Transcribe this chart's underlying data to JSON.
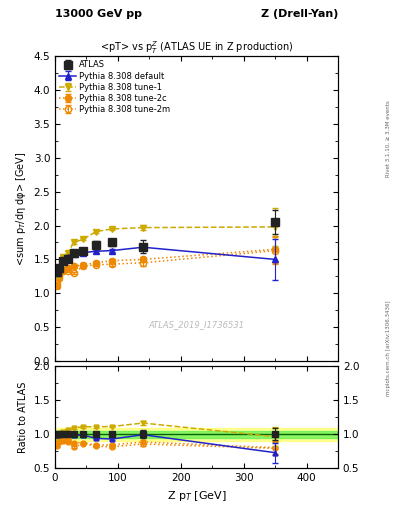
{
  "title_top_left": "13000 GeV pp",
  "title_top_right": "Z (Drell-Yan)",
  "title_main": "<pT> vs p$_T^Z$ (ATLAS UE in Z production)",
  "ylabel_main": "<sum p$_T$/dη dφ> [GeV]",
  "ylabel_ratio": "Ratio to ATLAS",
  "xlabel": "Z p$_T$ [GeV]",
  "watermark": "ATLAS_2019_I1736531",
  "right_label": "mcplots.cern.ch [arXiv:1306.3436]",
  "right_label2": "Rivet 3.1.10, ≥ 3.3M events",
  "atlas_x": [
    3.5,
    7,
    13,
    20,
    30,
    45,
    65,
    90,
    140,
    350
  ],
  "atlas_y": [
    1.32,
    1.37,
    1.48,
    1.5,
    1.6,
    1.62,
    1.72,
    1.75,
    1.69,
    2.05
  ],
  "atlas_yerr": [
    0.05,
    0.04,
    0.04,
    0.04,
    0.04,
    0.04,
    0.05,
    0.05,
    0.1,
    0.18
  ],
  "default_x": [
    3.5,
    7,
    13,
    20,
    30,
    45,
    65,
    90,
    140,
    350
  ],
  "default_y": [
    1.3,
    1.38,
    1.48,
    1.53,
    1.58,
    1.6,
    1.62,
    1.63,
    1.68,
    1.5
  ],
  "default_yerr": [
    0.02,
    0.02,
    0.02,
    0.02,
    0.02,
    0.02,
    0.02,
    0.02,
    0.04,
    0.3
  ],
  "tune1_x": [
    3.5,
    7,
    13,
    20,
    30,
    45,
    65,
    90,
    140,
    350
  ],
  "tune1_y": [
    1.25,
    1.38,
    1.53,
    1.6,
    1.75,
    1.8,
    1.91,
    1.95,
    1.97,
    1.98
  ],
  "tune1_yerr": [
    0.02,
    0.02,
    0.02,
    0.02,
    0.02,
    0.02,
    0.02,
    0.02,
    0.04,
    0.28
  ],
  "tune2c_x": [
    3.5,
    7,
    13,
    20,
    30,
    45,
    65,
    90,
    140,
    350
  ],
  "tune2c_y": [
    1.1,
    1.22,
    1.33,
    1.38,
    1.4,
    1.42,
    1.45,
    1.48,
    1.5,
    1.65
  ],
  "tune2c_yerr": [
    0.02,
    0.02,
    0.02,
    0.02,
    0.02,
    0.02,
    0.02,
    0.02,
    0.04,
    0.2
  ],
  "tune2m_x": [
    3.5,
    7,
    13,
    20,
    30,
    45,
    65,
    90,
    140,
    350
  ],
  "tune2m_y": [
    1.15,
    1.25,
    1.35,
    1.33,
    1.3,
    1.4,
    1.42,
    1.43,
    1.45,
    1.63
  ],
  "tune2m_yerr": [
    0.02,
    0.02,
    0.02,
    0.02,
    0.02,
    0.02,
    0.02,
    0.02,
    0.04,
    0.2
  ],
  "ylim_main": [
    0.0,
    4.5
  ],
  "ylim_ratio": [
    0.5,
    2.0
  ],
  "xlim": [
    0,
    450
  ],
  "color_atlas": "#222222",
  "color_default": "#2222cc",
  "color_tune1": "#ccaa00",
  "color_tune2c": "#ee8800",
  "color_tune2m": "#ee8800",
  "band_yellow_x": 150,
  "band_yellow": [
    0.9,
    1.1
  ],
  "band_green": [
    0.95,
    1.05
  ]
}
